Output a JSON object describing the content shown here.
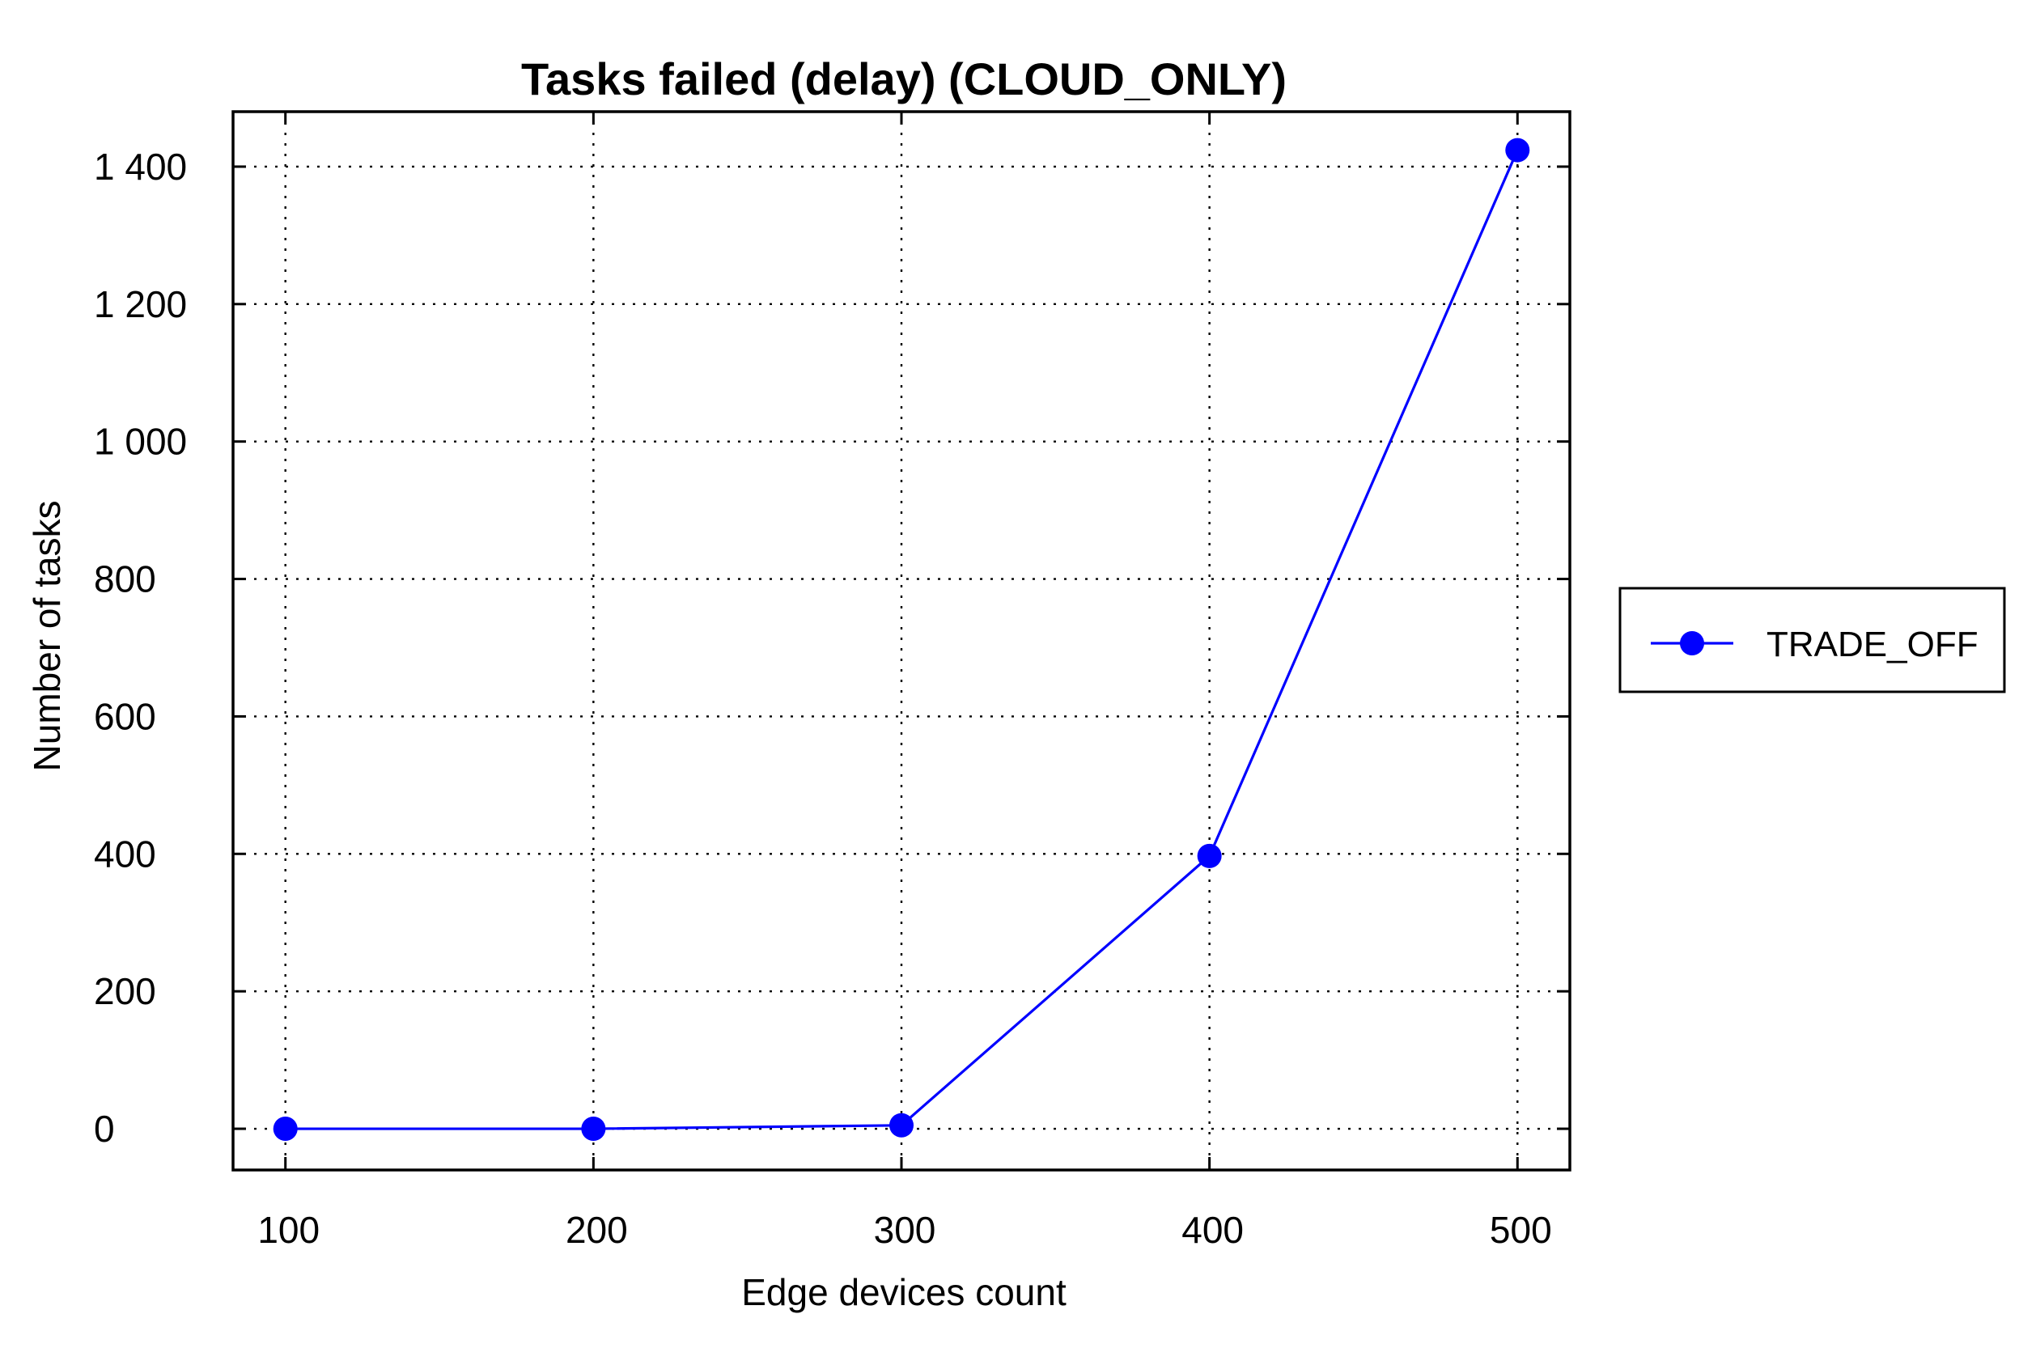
{
  "chart_data": {
    "type": "line",
    "title": "Tasks failed (delay) (CLOUD_ONLY)",
    "xlabel": "Edge devices count",
    "ylabel": "Number of tasks",
    "x": [
      100,
      200,
      300,
      400,
      500
    ],
    "x_tick_labels": [
      "100",
      "200",
      "300",
      "400",
      "500"
    ],
    "xlim": [
      83,
      517
    ],
    "ylim": [
      -60,
      1480
    ],
    "y_ticks": [
      0,
      200,
      400,
      600,
      800,
      1000,
      1200,
      1400
    ],
    "y_tick_labels": [
      "0",
      "200",
      "400",
      "600",
      "800",
      "1 000",
      "1 200",
      "1 400"
    ],
    "grid": true,
    "legend_position": "outside-right",
    "series": [
      {
        "name": "TRADE_OFF",
        "color": "#0000ff",
        "marker": "circle",
        "values": [
          0,
          0,
          5,
          397,
          1424
        ]
      }
    ]
  }
}
